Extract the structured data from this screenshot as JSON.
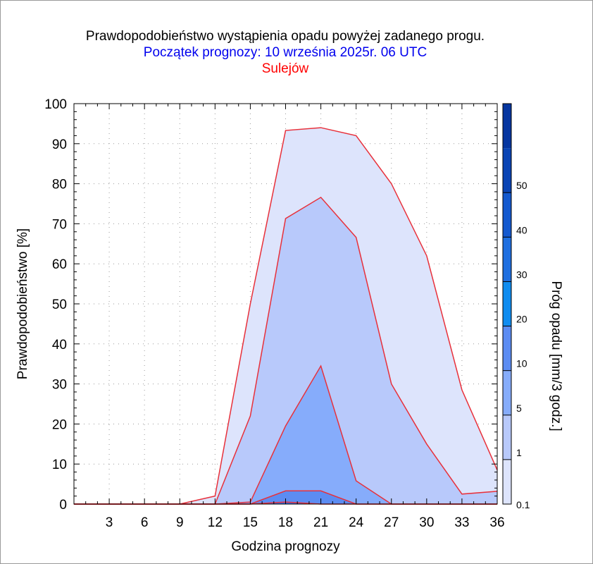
{
  "title": "Prawdopodobieństwo wystąpienia opadu powyżej zadanego progu.",
  "subtitle": "Początek prognozy: 10 września 2025r. 06 UTC",
  "station": "Sulejów",
  "colors": {
    "title": "#000000",
    "subtitle": "#0000ee",
    "station": "#ff0000",
    "outline": "#e8303a"
  },
  "chart_data": {
    "type": "area",
    "title": "Prawdopodobieństwo wystąpienia opadu powyżej zadanego progu.",
    "xlabel": "Godzina prognozy",
    "ylabel": "Prawdopodobieństwo [%]",
    "xlim": [
      0,
      36
    ],
    "ylim": [
      0,
      100
    ],
    "x_ticks": [
      3,
      6,
      9,
      12,
      15,
      18,
      21,
      24,
      27,
      30,
      33,
      36
    ],
    "y_ticks": [
      0,
      10,
      20,
      30,
      40,
      50,
      60,
      70,
      80,
      90,
      100
    ],
    "grid": "dotted",
    "x": [
      0,
      3,
      6,
      9,
      12,
      15,
      18,
      21,
      24,
      27,
      30,
      33,
      36
    ],
    "series": [
      {
        "name": "0.1",
        "color": "#dde4fc",
        "values": [
          0,
          0,
          0,
          0,
          2,
          50,
          93.3,
          94,
          92,
          80,
          62,
          28.5,
          8.5
        ]
      },
      {
        "name": "1",
        "color": "#b8c9fb",
        "values": [
          0,
          0,
          0,
          0,
          0,
          22,
          71.3,
          76.6,
          66.6,
          30,
          15,
          2.5,
          3.2
        ]
      },
      {
        "name": "5",
        "color": "#86acfb",
        "values": [
          0,
          0,
          0,
          0,
          0,
          0.5,
          19.5,
          34.5,
          5.8,
          0,
          0,
          0,
          0
        ]
      },
      {
        "name": "10",
        "color": "#5c8cf2",
        "values": [
          0,
          0,
          0,
          0,
          0,
          0,
          3.3,
          3.3,
          0,
          0,
          0,
          0,
          0
        ]
      },
      {
        "name": "20",
        "color": "#3a6de6",
        "values": [
          0,
          0,
          0,
          0,
          0,
          0,
          0.5,
          0,
          0,
          0,
          0,
          0,
          0
        ]
      }
    ],
    "colorbar": {
      "label": "Próg opadu [mm/3 godz.]",
      "ticks": [
        "0.1",
        "1",
        "5",
        "10",
        "20",
        "30",
        "40",
        "50"
      ],
      "colors": [
        "#dde4fc",
        "#b8c9fb",
        "#86acfb",
        "#5c8cf2",
        "#0f8cf0",
        "#1f6fe0",
        "#1459cf",
        "#0a44b4",
        "#0636a0"
      ]
    }
  }
}
